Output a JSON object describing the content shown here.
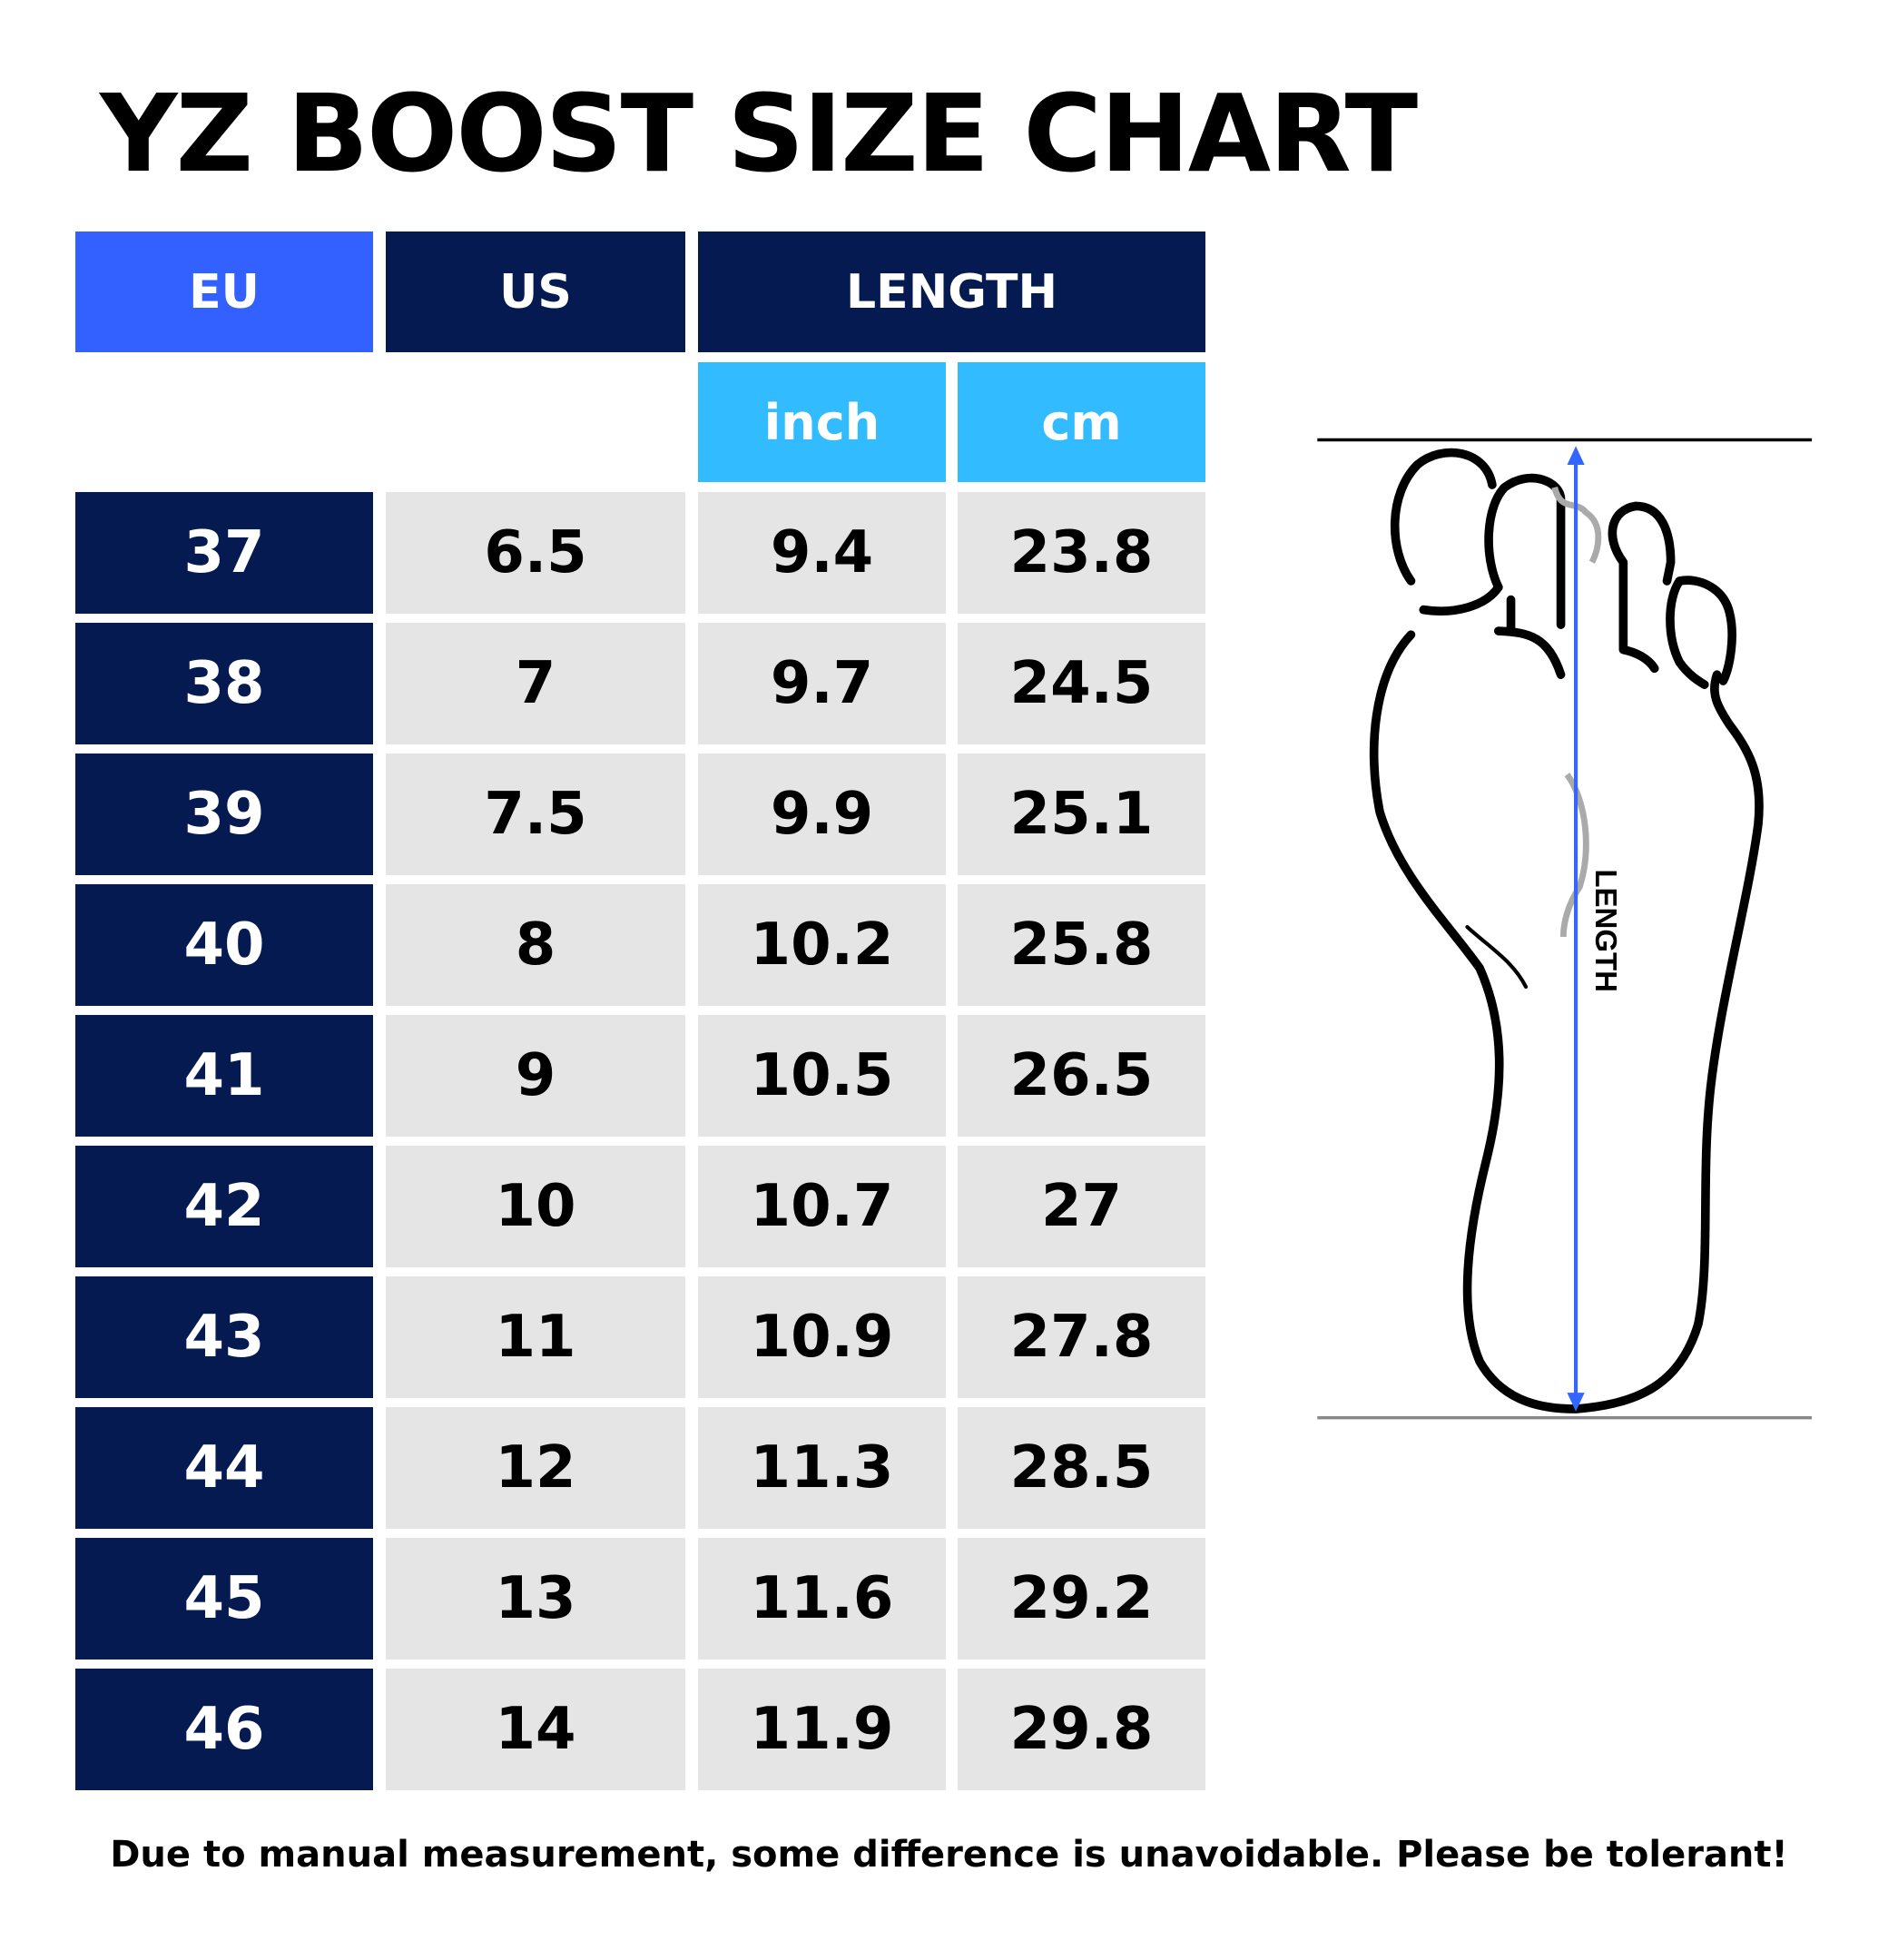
{
  "title": "YZ BOOST SIZE CHART",
  "headers": {
    "eu": "EU",
    "us": "US",
    "length": "LENGTH",
    "inch": "inch",
    "cm": "cm"
  },
  "rows": [
    {
      "eu": "37",
      "us": "6.5",
      "inch": "9.4",
      "cm": "23.8"
    },
    {
      "eu": "38",
      "us": "7",
      "inch": "9.7",
      "cm": "24.5"
    },
    {
      "eu": "39",
      "us": "7.5",
      "inch": "9.9",
      "cm": "25.1"
    },
    {
      "eu": "40",
      "us": "8",
      "inch": "10.2",
      "cm": "25.8"
    },
    {
      "eu": "41",
      "us": "9",
      "inch": "10.5",
      "cm": "26.5"
    },
    {
      "eu": "42",
      "us": "10",
      "inch": "10.7",
      "cm": "27"
    },
    {
      "eu": "43",
      "us": "11",
      "inch": "10.9",
      "cm": "27.8"
    },
    {
      "eu": "44",
      "us": "12",
      "inch": "11.3",
      "cm": "28.5"
    },
    {
      "eu": "45",
      "us": "13",
      "inch": "11.6",
      "cm": "29.2"
    },
    {
      "eu": "46",
      "us": "14",
      "inch": "11.9",
      "cm": "29.8"
    }
  ],
  "diagram": {
    "label": "LENGTH"
  },
  "footer": "Due to manual measurement, some difference is unavoidable. Please be tolerant!",
  "colors": {
    "eu_header": "#3361ff",
    "dark_navy": "#051a51",
    "sub_header": "#33bbff",
    "cell_gray": "#e5e5e5",
    "arrow": "#3366ff"
  }
}
